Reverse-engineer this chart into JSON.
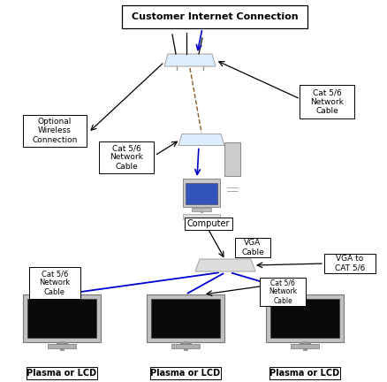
{
  "bg_color": "#ffffff",
  "labels": {
    "title": "Customer Internet Connection",
    "cat56_right": "Cat 5/6\nNetwork\nCable",
    "optional_wireless": "Optional\nWireless\nConnection",
    "cat56_left": "Cat 5/6\nNetwork\nCable",
    "computer": "Computer",
    "vga_cable": "VGA\nCable",
    "vga_to_cat": "VGA to\nCAT 5/6",
    "cat56_bottom_left": "Cat 5/6\nNetwork\nCable",
    "cat56_bottom_right": "Cat 5/6\nNetwork\nCable",
    "plasma1": "Plasma or LCD",
    "plasma2": "Plasma or LCD",
    "plasma3": "Plasma or LCD"
  },
  "colors": {
    "blue": "#0000cc",
    "black": "#000000",
    "brown_dash": "#8B5A2B",
    "router_face": "#ddeeff",
    "router_edge": "#aaaaaa",
    "hub_face": "#ddeeff",
    "hub_edge": "#aaaaaa",
    "splitter_face": "#dddddd",
    "splitter_edge": "#aaaaaa",
    "monitor_body": "#bbbbbb",
    "monitor_screen": "#111111",
    "monitor_edge": "#888888",
    "comp_screen": "#3355bb",
    "comp_tower": "#cccccc",
    "white": "#ffffff"
  }
}
